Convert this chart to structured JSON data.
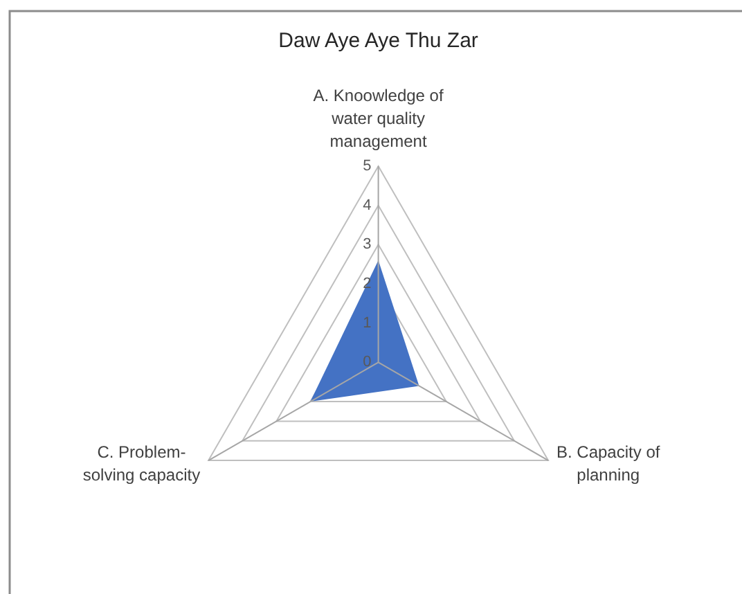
{
  "chart_data": {
    "type": "radar",
    "title": "Daw Aye Aye Thu Zar",
    "categories": [
      "A. Knoowledge of water quality management",
      "B. Capacity of planning",
      "C. Problem-solving capacity"
    ],
    "series": [
      {
        "color": "#4472c4",
        "values": [
          2.6,
          1.2,
          2
        ]
      }
    ],
    "ylim": [
      0,
      5
    ],
    "yticks": [
      0,
      1,
      2,
      3,
      4,
      5
    ],
    "grid": true
  }
}
